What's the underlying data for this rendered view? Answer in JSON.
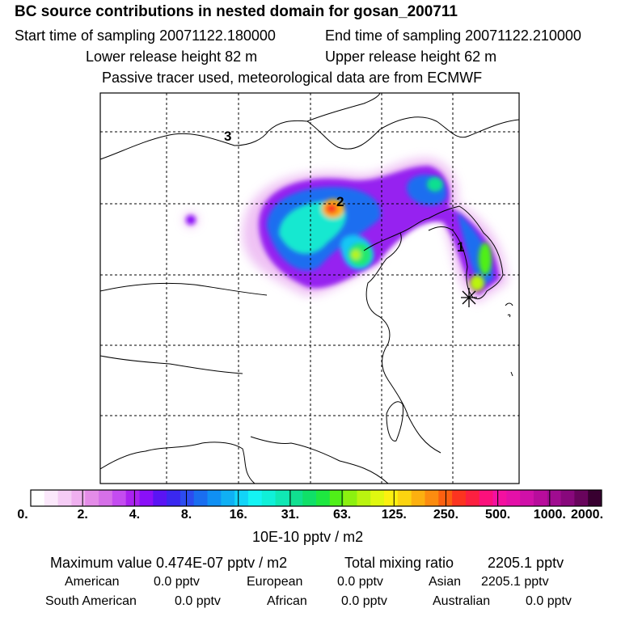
{
  "header": {
    "title": "BC  source contributions in nested domain for gosan_200711",
    "start_time": "Start time of sampling 20071122.180000",
    "end_time": "End time of sampling 20071122.210000",
    "lower_height": "Lower release height   82 m",
    "upper_height": "Upper release height   62 m",
    "note": "Passive tracer used, meteorological data are from ECMWF"
  },
  "map": {
    "labels": [
      "1",
      "2",
      "3"
    ]
  },
  "scale": {
    "tick_labels": [
      "0.",
      "2.",
      "4.",
      "8.",
      "16.",
      "31.",
      "63.",
      "125.",
      "250.",
      "500.",
      "1000.",
      "2000."
    ],
    "unit": "10E-10 pptv / m2",
    "colors": [
      "#ffffff",
      "#fbe8fb",
      "#f5ccf5",
      "#f0b0f0",
      "#e48ce8",
      "#d670e8",
      "#c44cf0",
      "#aa22f0",
      "#8a10f8",
      "#5a14f4",
      "#3a28f0",
      "#2c4cf0",
      "#1a6ef0",
      "#1090f4",
      "#10b0f4",
      "#12d4f8",
      "#14f4f4",
      "#10f0d8",
      "#10e8b4",
      "#10e090",
      "#10e068",
      "#1ee840",
      "#50f018",
      "#8cf010",
      "#baf410",
      "#e0f810",
      "#fcf010",
      "#fcd410",
      "#fcb010",
      "#fc8c10",
      "#fc6010",
      "#fc3420",
      "#fc2040",
      "#fc107c",
      "#f410a0",
      "#e410a8",
      "#d010a8",
      "#b80c9c",
      "#a00c90",
      "#88087c",
      "#68045c",
      "#380030"
    ]
  },
  "stats": {
    "max_label": "Maximum value  0.474E-07 pptv / m2",
    "total_label": "Total mixing ratio",
    "total_value": "2205.1 pptv",
    "american_label": "American",
    "american_value": "0.0 pptv",
    "european_label": "European",
    "european_value": "0.0 pptv",
    "asian_label": "Asian",
    "asian_value": "2205.1 pptv",
    "south_american_label": "South American",
    "south_american_value": "0.0 pptv",
    "african_label": "African",
    "african_value": "0.0 pptv",
    "australian_label": "Australian",
    "australian_value": "0.0 pptv"
  }
}
